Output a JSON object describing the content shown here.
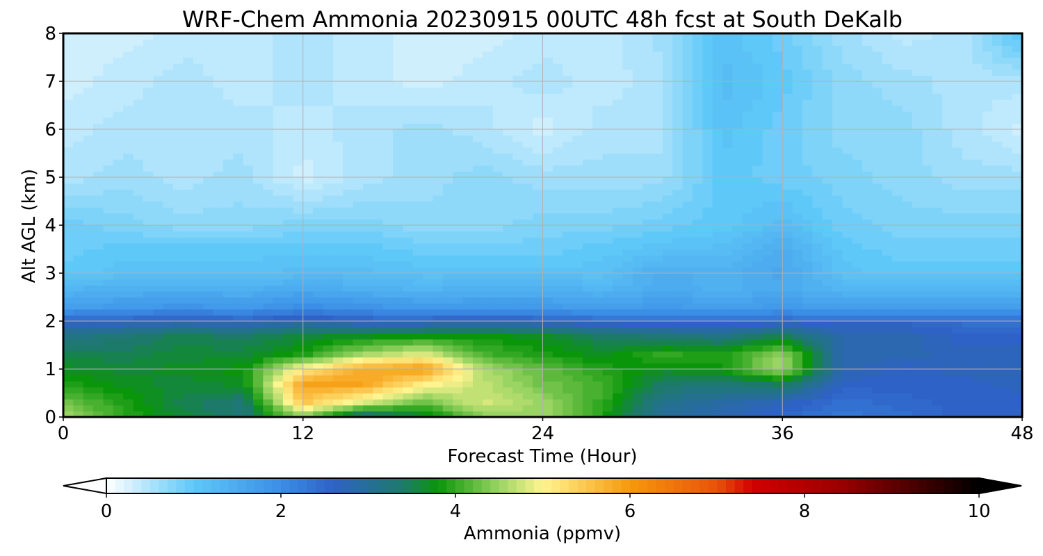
{
  "chart_data": {
    "type": "heatmap",
    "title": "WRF-Chem Ammonia  20230915 00UTC 48h fcst at South DeKalb",
    "xlabel": "Forecast Time (Hour)",
    "ylabel": "Alt AGL (km)",
    "xlim": [
      0,
      48
    ],
    "ylim": [
      0,
      8
    ],
    "xticks": [
      "0",
      "12",
      "24",
      "36",
      "48"
    ],
    "yticks": [
      "0",
      "1",
      "2",
      "3",
      "4",
      "5",
      "6",
      "7",
      "8"
    ],
    "grid": true,
    "x": [
      0,
      3,
      6,
      9,
      12,
      15,
      18,
      21,
      24,
      27,
      30,
      33,
      36,
      39,
      42,
      45,
      48
    ],
    "y": [
      0,
      0.3,
      0.7,
      1.0,
      1.3,
      1.7,
      2.0,
      2.3,
      2.7,
      3.0,
      3.5,
      4.0,
      5.0,
      6.0,
      7.0,
      8.0
    ],
    "z": [
      [
        4.6,
        4.0,
        3.6,
        3.3,
        4.4,
        3.0,
        3.6,
        4.4,
        4.5,
        3.9,
        3.0,
        2.8,
        2.5,
        2.3,
        2.4,
        2.6,
        2.6
      ],
      [
        4.3,
        3.9,
        3.5,
        3.3,
        5.5,
        4.8,
        4.2,
        4.8,
        4.5,
        4.0,
        3.1,
        2.9,
        2.7,
        2.4,
        2.5,
        2.6,
        2.6
      ],
      [
        3.9,
        3.7,
        3.6,
        3.7,
        5.9,
        5.9,
        5.1,
        4.7,
        4.3,
        4.1,
        3.4,
        3.3,
        3.5,
        2.6,
        2.6,
        2.6,
        2.7
      ],
      [
        3.7,
        3.6,
        3.7,
        3.8,
        5.1,
        5.8,
        6.0,
        4.6,
        4.2,
        3.9,
        3.7,
        3.8,
        4.6,
        2.8,
        2.6,
        2.7,
        2.7
      ],
      [
        3.5,
        3.5,
        3.6,
        3.6,
        3.9,
        4.6,
        4.9,
        4.1,
        3.9,
        3.7,
        4.0,
        3.9,
        4.5,
        2.8,
        2.8,
        2.7,
        2.7
      ],
      [
        3.2,
        3.3,
        3.5,
        3.4,
        3.6,
        3.7,
        3.8,
        3.8,
        3.7,
        3.4,
        3.3,
        3.2,
        3.5,
        2.8,
        2.8,
        2.6,
        2.6
      ],
      [
        2.6,
        2.6,
        2.7,
        2.6,
        2.8,
        2.6,
        2.6,
        2.7,
        2.6,
        2.5,
        2.4,
        2.4,
        2.5,
        2.5,
        2.5,
        2.4,
        2.4
      ],
      [
        1.7,
        1.8,
        1.9,
        1.8,
        2.0,
        1.9,
        1.8,
        1.8,
        1.8,
        1.7,
        1.8,
        1.7,
        1.8,
        1.7,
        1.7,
        1.7,
        1.7
      ],
      [
        1.3,
        1.4,
        1.4,
        1.4,
        1.5,
        1.4,
        1.3,
        1.4,
        1.4,
        1.3,
        1.5,
        1.4,
        1.5,
        1.3,
        1.3,
        1.3,
        1.3
      ],
      [
        1.0,
        1.1,
        1.1,
        1.1,
        1.2,
        1.2,
        1.1,
        1.1,
        1.1,
        1.1,
        1.5,
        1.4,
        1.6,
        1.1,
        1.0,
        1.0,
        1.0
      ],
      [
        0.9,
        1.0,
        1.0,
        1.0,
        1.0,
        1.0,
        0.9,
        0.9,
        0.9,
        1.0,
        1.1,
        1.2,
        1.5,
        1.0,
        0.9,
        0.9,
        0.9
      ],
      [
        0.9,
        0.8,
        0.7,
        0.7,
        0.8,
        0.8,
        0.7,
        0.7,
        0.8,
        0.8,
        0.9,
        1.0,
        1.2,
        0.9,
        0.8,
        0.8,
        0.8
      ],
      [
        0.5,
        0.6,
        0.5,
        0.6,
        0.3,
        0.5,
        0.6,
        0.7,
        0.6,
        0.6,
        0.6,
        1.0,
        0.9,
        0.8,
        0.7,
        0.6,
        0.6
      ],
      [
        0.4,
        0.5,
        0.5,
        0.5,
        0.4,
        0.5,
        0.6,
        0.5,
        0.3,
        0.5,
        0.5,
        1.1,
        0.9,
        0.7,
        0.7,
        0.5,
        0.3
      ],
      [
        0.3,
        0.4,
        0.5,
        0.4,
        0.5,
        0.4,
        0.3,
        0.4,
        0.5,
        0.4,
        0.5,
        1.2,
        1.0,
        0.7,
        0.6,
        0.5,
        0.5
      ],
      [
        0.3,
        0.3,
        0.4,
        0.4,
        0.5,
        0.4,
        0.3,
        0.3,
        0.4,
        0.4,
        0.6,
        1.1,
        0.9,
        0.6,
        0.4,
        0.5,
        1.1
      ]
    ],
    "colorbar": {
      "label": "Ammonia  (ppmv)",
      "ticks": [
        "0",
        "2",
        "4",
        "6",
        "8",
        "10"
      ],
      "range": [
        0,
        10
      ],
      "extend": "both",
      "stops": [
        {
          "v": 0.0,
          "c": "#ffffff"
        },
        {
          "v": 1.0,
          "c": "#5ec8f8"
        },
        {
          "v": 2.0,
          "c": "#3b8ee6"
        },
        {
          "v": 2.6,
          "c": "#2f62c6"
        },
        {
          "v": 3.4,
          "c": "#1d7a6a"
        },
        {
          "v": 3.8,
          "c": "#0a960a"
        },
        {
          "v": 4.5,
          "c": "#9ad462"
        },
        {
          "v": 5.0,
          "c": "#fff590"
        },
        {
          "v": 6.0,
          "c": "#f6980c"
        },
        {
          "v": 7.0,
          "c": "#e8530a"
        },
        {
          "v": 7.4,
          "c": "#d20000"
        },
        {
          "v": 8.4,
          "c": "#9b0000"
        },
        {
          "v": 10.0,
          "c": "#000000"
        }
      ]
    }
  }
}
